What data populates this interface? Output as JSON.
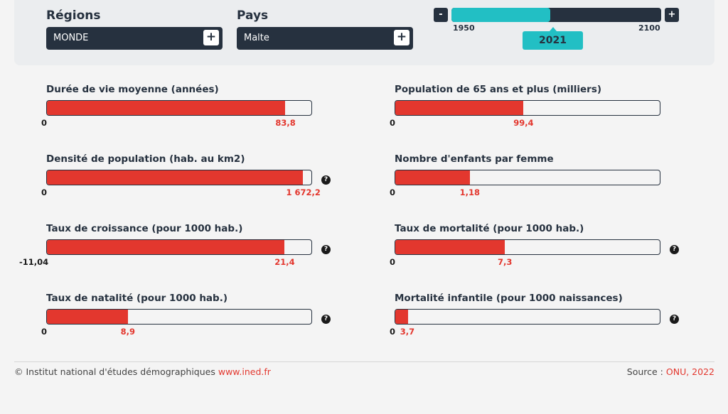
{
  "filters": {
    "regions": {
      "label": "Régions",
      "value": "MONDE",
      "plus": "+"
    },
    "pays": {
      "label": "Pays",
      "value": "Malte",
      "plus": "+"
    }
  },
  "year_slider": {
    "minus": "-",
    "plus": "+",
    "start": "1950",
    "end": "2100",
    "current": "2021",
    "position_fraction": 0.47
  },
  "indicators": [
    {
      "id": "duree-vie",
      "title": "Durée de vie moyenne (années)",
      "min": "0",
      "value": "83,8",
      "fill": 0.9,
      "help": false
    },
    {
      "id": "pop-65",
      "title": "Population de 65 ans et plus (milliers)",
      "min": "0",
      "value": "99,4",
      "fill": 0.485,
      "help": false
    },
    {
      "id": "densite",
      "title": "Densité de population (hab. au km2)",
      "min": "0",
      "value": "1 672,2",
      "fill": 0.967,
      "help": true
    },
    {
      "id": "enfants",
      "title": "Nombre d'enfants par femme",
      "min": "0",
      "value": "1,18",
      "fill": 0.283,
      "help": false
    },
    {
      "id": "croissance",
      "title": "Taux de croissance (pour 1000 hab.)",
      "min": "-11,04",
      "value": "21,4",
      "fill": 0.897,
      "help": true
    },
    {
      "id": "mortalite",
      "title": "Taux de mortalité (pour 1000 hab.)",
      "min": "0",
      "value": "7,3",
      "fill": 0.415,
      "help": true
    },
    {
      "id": "natalite",
      "title": "Taux de natalité (pour 1000 hab.)",
      "min": "0",
      "value": "8,9",
      "fill": 0.307,
      "help": true
    },
    {
      "id": "mortalite-infantile",
      "title": "Mortalité infantile (pour 1000 naissances)",
      "min": "0",
      "value": "3,7",
      "fill": 0.048,
      "help": true
    }
  ],
  "help_glyph": "?",
  "footer": {
    "copyright": "© Institut national d'études démographiques",
    "site_link": "www.ined.fr",
    "source_label": "Source :",
    "source_link": "ONU, 2022"
  },
  "colors": {
    "accent": "#e3372e",
    "dark": "#26313f",
    "teal": "#22bfc4"
  }
}
